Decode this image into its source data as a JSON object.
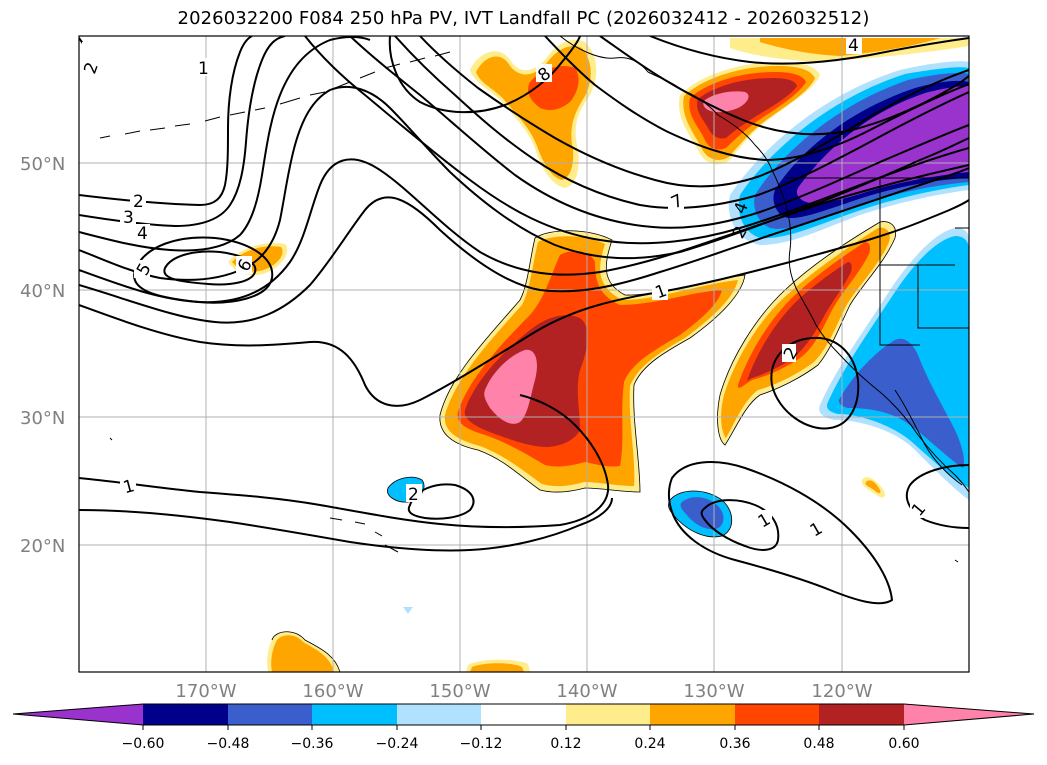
{
  "title": "2026032200 F084 250 hPa PV, IVT Landfall PC (2026032412 - 2026032512)",
  "map": {
    "projection": "PlateCarree",
    "lon_range": [
      -180,
      -110
    ],
    "lat_range": [
      10,
      60
    ],
    "gridlines": true,
    "lat_labels": [
      "50°N",
      "40°N",
      "30°N",
      "20°N"
    ],
    "lon_labels": [
      "170°W",
      "160°W",
      "150°W",
      "140°W",
      "130°W",
      "120°W"
    ],
    "pv_contour_labels": [
      "1",
      "2",
      "3",
      "4",
      "5",
      "6",
      "7",
      "8",
      "4",
      "4",
      "2",
      "1",
      "1",
      "2",
      "1",
      "1",
      "2",
      "1",
      "2"
    ]
  },
  "colorbar": {
    "extend": "both",
    "tick_labels": [
      "−0.60",
      "−0.48",
      "−0.36",
      "−0.24",
      "−0.12",
      "0.12",
      "0.24",
      "0.36",
      "0.48",
      "0.60"
    ],
    "colors": {
      "below_min": "#9a32cd",
      "c1": "#00008b",
      "c2": "#3a5fcd",
      "c3": "#00bfff",
      "c4": "#b0e2ff",
      "c5": "#ffffff",
      "c6": "#ffec8b",
      "c7": "#ffa500",
      "c8": "#ff4500",
      "c9": "#b22222",
      "above_max": "#ff82ab"
    }
  }
}
